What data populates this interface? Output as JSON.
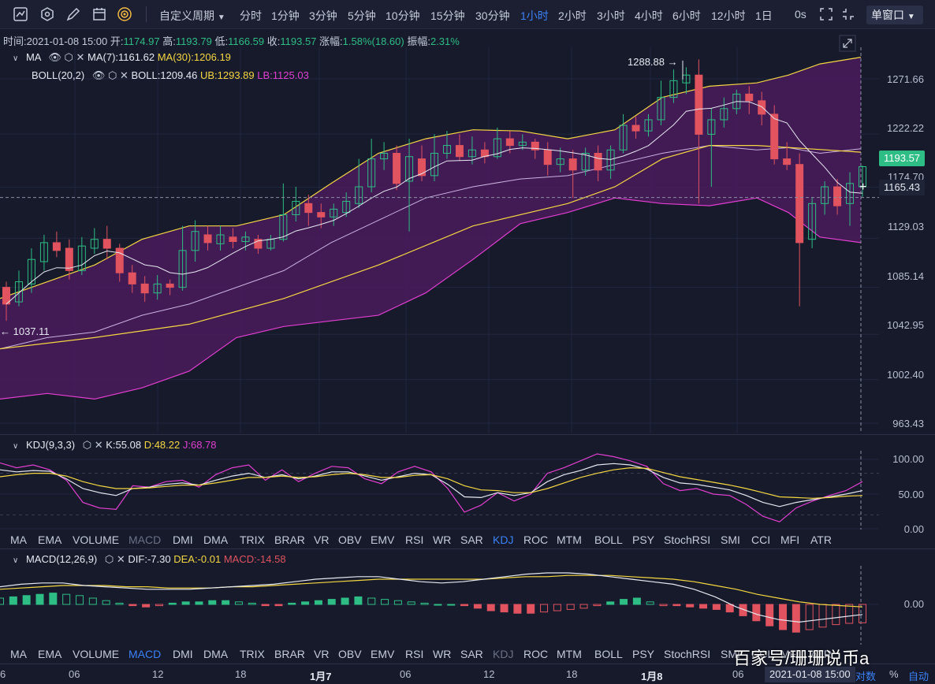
{
  "toolbar": {
    "custom_period": "自定义周期",
    "periods": [
      "分时",
      "1分钟",
      "3分钟",
      "5分钟",
      "10分钟",
      "15分钟",
      "30分钟",
      "1小时",
      "2小时",
      "3小时",
      "4小时",
      "6小时",
      "12小时",
      "1日"
    ],
    "active_period": "1小时",
    "countdown": "0s",
    "window_mode": "单窗口"
  },
  "info_bar": {
    "time_label": "时间:",
    "time_value": "2021-01-08 15:00",
    "open_label": "开:",
    "open_value": "1174.97",
    "high_label": "高:",
    "high_value": "1193.79",
    "low_label": "低:",
    "low_value": "1166.59",
    "close_label": "收:",
    "close_value": "1193.57",
    "change_label": "涨幅:",
    "change_value": "1.58%(18.60)",
    "amp_label": "振幅:",
    "amp_value": "2.31%"
  },
  "ma_legend": {
    "name": "MA",
    "ma7": "MA(7):1161.62",
    "ma30": "MA(30):1206.19"
  },
  "boll_legend": {
    "name": "BOLL(20,2)",
    "boll": "BOLL:1209.46",
    "ub": "UB:1293.89",
    "lb": "LB:1125.03"
  },
  "price_axis": [
    "1271.66",
    "1222.22",
    "1174.70",
    "1129.03",
    "1085.14",
    "1042.95",
    "1002.40",
    "963.43"
  ],
  "last_price": "1193.57",
  "cursor_price": "1165.43",
  "high_marker": "1288.88 →",
  "low_marker": "← 1037.11",
  "kdj_legend": {
    "name": "KDJ(9,3,3)",
    "k": "K:55.08",
    "d": "D:48.22",
    "j": "J:68.78"
  },
  "kdj_axis": [
    "100.00",
    "50.00",
    "0.00"
  ],
  "macd_legend": {
    "name": "MACD(12,26,9)",
    "dif": "DIF:-7.30",
    "dea": "DEA:-0.01",
    "macd": "MACD:-14.58"
  },
  "macd_axis": [
    "0.00"
  ],
  "indicator_tabs": [
    "MA",
    "EMA",
    "VOLUME",
    "MACD",
    "DMI",
    "DMA",
    "TRIX",
    "BRAR",
    "VR",
    "OBV",
    "EMV",
    "RSI",
    "WR",
    "SAR",
    "KDJ",
    "ROC",
    "MTM",
    "BOLL",
    "PSY",
    "StochRSI",
    "SMI",
    "CCI",
    "MFI",
    "ATR"
  ],
  "tabs1_active": "KDJ",
  "tabs2_active": "MACD",
  "x_axis": [
    {
      "label": "6",
      "bold": false
    },
    {
      "label": "06",
      "bold": false
    },
    {
      "label": "12",
      "bold": false
    },
    {
      "label": "18",
      "bold": false
    },
    {
      "label": "1月7",
      "bold": true
    },
    {
      "label": "06",
      "bold": false
    },
    {
      "label": "12",
      "bold": false
    },
    {
      "label": "18",
      "bold": false
    },
    {
      "label": "1月8",
      "bold": true
    },
    {
      "label": "06",
      "bold": false
    }
  ],
  "cursor_time": "2021-01-08 15:00",
  "footer": {
    "log": "对数",
    "percent": "%",
    "auto": "自动"
  },
  "watermark": "百家号/珊珊说币a",
  "colors": {
    "up": "#2ebd85",
    "down": "#e0535f",
    "boll_fill": "#4a1b5c",
    "ub": "#f5d742",
    "lb": "#e23fd0"
  }
}
